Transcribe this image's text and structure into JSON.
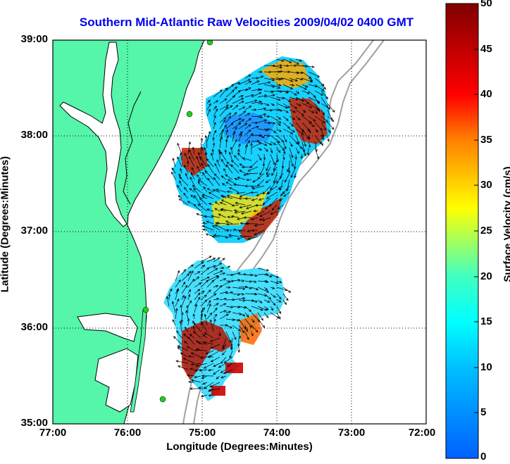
{
  "title": "Southern Mid-Atlantic Raw Velocities 2009/04/02 0400 GMT",
  "axes": {
    "xlabel": "Longitude (Degrees:Minutes)",
    "ylabel": "Latitude (Degrees:Minutes)",
    "x_ticks": [
      "77:00",
      "76:00",
      "75:00",
      "74:00",
      "73:00",
      "72:00"
    ],
    "y_ticks": [
      "39:00",
      "38:00",
      "37:00",
      "36:00",
      "35:00"
    ]
  },
  "colorbar": {
    "label": "Surface Velocity (cm/s)",
    "ticks": [
      "50",
      "45",
      "40",
      "35",
      "30",
      "25",
      "20",
      "15",
      "10",
      "5",
      "0"
    ],
    "min": 0,
    "max": 50
  },
  "colors": {
    "land": "#55f5aa",
    "water": "#ffffff",
    "coastline": "#000000",
    "isobath": "#a0a0a0",
    "title": "#0000ee",
    "station_marker": "#22cc22"
  }
}
